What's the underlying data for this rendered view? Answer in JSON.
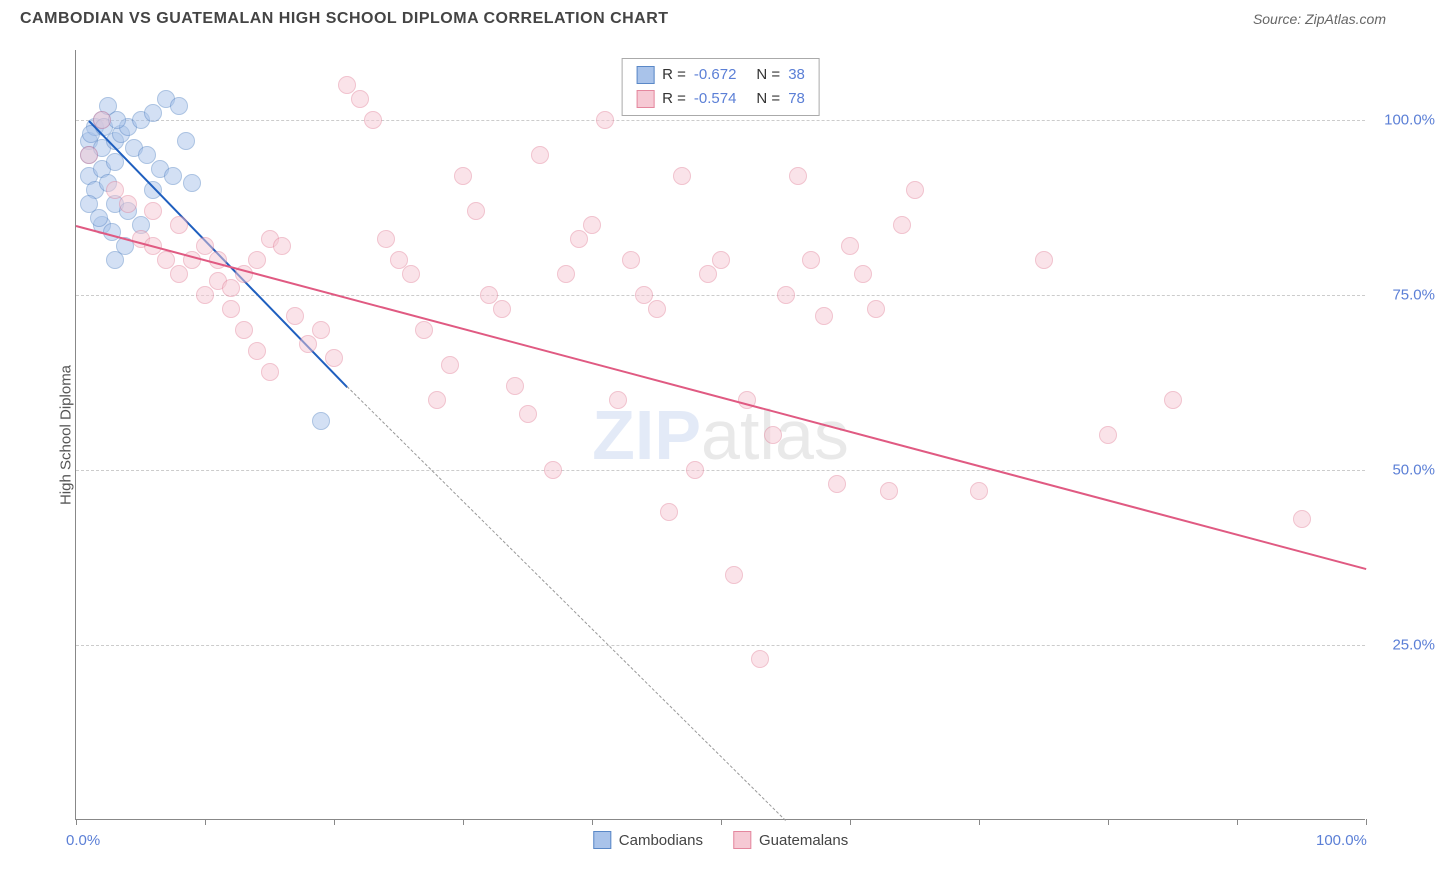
{
  "title": "CAMBODIAN VS GUATEMALAN HIGH SCHOOL DIPLOMA CORRELATION CHART",
  "source_label": "Source: ZipAtlas.com",
  "watermark_bold": "ZIP",
  "watermark_light": "atlas",
  "chart": {
    "type": "scatter",
    "y_axis_label": "High School Diploma",
    "x_min": 0,
    "x_max": 100,
    "y_min": 0,
    "y_max": 110,
    "x_ticks": [
      0,
      10,
      20,
      30,
      40,
      50,
      60,
      70,
      80,
      90,
      100
    ],
    "y_gridlines": [
      25,
      50,
      75,
      100
    ],
    "x_tick_labels": {
      "0": "0.0%",
      "100": "100.0%"
    },
    "y_tick_labels": {
      "25": "25.0%",
      "50": "50.0%",
      "75": "75.0%",
      "100": "100.0%"
    },
    "background_color": "#ffffff",
    "grid_color": "#cccccc",
    "axis_value_color": "#5b7fd6",
    "series": [
      {
        "name": "Cambodians",
        "fill_color": "#a9c3ea",
        "stroke_color": "#5a88c7",
        "line_color": "#1f5fbf",
        "R": -0.672,
        "N": 38,
        "trend": {
          "x1": 1,
          "y1": 100,
          "x2": 21,
          "y2": 62,
          "dash_continue_to_x": 55,
          "dash_continue_to_y": 0
        },
        "points": [
          [
            1,
            97
          ],
          [
            1.5,
            99
          ],
          [
            2,
            100
          ],
          [
            2.5,
            102
          ],
          [
            1,
            95
          ],
          [
            2,
            96
          ],
          [
            3,
            97
          ],
          [
            3.5,
            98
          ],
          [
            4,
            99
          ],
          [
            5,
            100
          ],
          [
            6,
            101
          ],
          [
            7,
            103
          ],
          [
            1,
            92
          ],
          [
            2,
            93
          ],
          [
            3,
            94
          ],
          [
            1.5,
            90
          ],
          [
            2.5,
            91
          ],
          [
            3,
            88
          ],
          [
            4,
            87
          ],
          [
            5,
            85
          ],
          [
            6,
            90
          ],
          [
            8,
            102
          ],
          [
            8.5,
            97
          ],
          [
            9,
            91
          ],
          [
            3,
            80
          ],
          [
            1,
            88
          ],
          [
            2,
            85
          ],
          [
            19,
            57
          ],
          [
            1.2,
            98
          ],
          [
            2.2,
            99
          ],
          [
            3.2,
            100
          ],
          [
            4.5,
            96
          ],
          [
            5.5,
            95
          ],
          [
            6.5,
            93
          ],
          [
            7.5,
            92
          ],
          [
            1.8,
            86
          ],
          [
            2.8,
            84
          ],
          [
            3.8,
            82
          ]
        ]
      },
      {
        "name": "Guatemalans",
        "fill_color": "#f6c9d4",
        "stroke_color": "#e4879e",
        "line_color": "#e05a82",
        "R": -0.574,
        "N": 78,
        "trend": {
          "x1": 0,
          "y1": 85,
          "x2": 100,
          "y2": 36
        },
        "points": [
          [
            1,
            95
          ],
          [
            2,
            100
          ],
          [
            3,
            90
          ],
          [
            4,
            88
          ],
          [
            5,
            83
          ],
          [
            6,
            82
          ],
          [
            7,
            80
          ],
          [
            8,
            78
          ],
          [
            9,
            80
          ],
          [
            10,
            75
          ],
          [
            11,
            77
          ],
          [
            12,
            73
          ],
          [
            13,
            78
          ],
          [
            14,
            80
          ],
          [
            15,
            83
          ],
          [
            16,
            82
          ],
          [
            17,
            72
          ],
          [
            18,
            68
          ],
          [
            19,
            70
          ],
          [
            20,
            66
          ],
          [
            21,
            105
          ],
          [
            22,
            103
          ],
          [
            23,
            100
          ],
          [
            24,
            83
          ],
          [
            25,
            80
          ],
          [
            26,
            78
          ],
          [
            27,
            70
          ],
          [
            28,
            60
          ],
          [
            29,
            65
          ],
          [
            30,
            92
          ],
          [
            31,
            87
          ],
          [
            32,
            75
          ],
          [
            33,
            73
          ],
          [
            34,
            62
          ],
          [
            35,
            58
          ],
          [
            36,
            95
          ],
          [
            37,
            50
          ],
          [
            38,
            78
          ],
          [
            39,
            83
          ],
          [
            40,
            85
          ],
          [
            41,
            100
          ],
          [
            42,
            60
          ],
          [
            43,
            80
          ],
          [
            44,
            75
          ],
          [
            45,
            73
          ],
          [
            46,
            44
          ],
          [
            47,
            92
          ],
          [
            48,
            50
          ],
          [
            49,
            78
          ],
          [
            50,
            80
          ],
          [
            51,
            35
          ],
          [
            52,
            60
          ],
          [
            53,
            23
          ],
          [
            54,
            55
          ],
          [
            55,
            75
          ],
          [
            56,
            92
          ],
          [
            57,
            80
          ],
          [
            58,
            72
          ],
          [
            59,
            48
          ],
          [
            60,
            82
          ],
          [
            61,
            78
          ],
          [
            62,
            73
          ],
          [
            63,
            47
          ],
          [
            64,
            85
          ],
          [
            65,
            90
          ],
          [
            70,
            47
          ],
          [
            75,
            80
          ],
          [
            80,
            55
          ],
          [
            85,
            60
          ],
          [
            95,
            43
          ],
          [
            10,
            82
          ],
          [
            11,
            80
          ],
          [
            12,
            76
          ],
          [
            13,
            70
          ],
          [
            14,
            67
          ],
          [
            15,
            64
          ],
          [
            8,
            85
          ],
          [
            6,
            87
          ]
        ]
      }
    ],
    "legend_bottom": [
      {
        "label": "Cambodians",
        "fill": "#a9c3ea",
        "stroke": "#5a88c7"
      },
      {
        "label": "Guatemalans",
        "fill": "#f6c9d4",
        "stroke": "#e4879e"
      }
    ]
  }
}
